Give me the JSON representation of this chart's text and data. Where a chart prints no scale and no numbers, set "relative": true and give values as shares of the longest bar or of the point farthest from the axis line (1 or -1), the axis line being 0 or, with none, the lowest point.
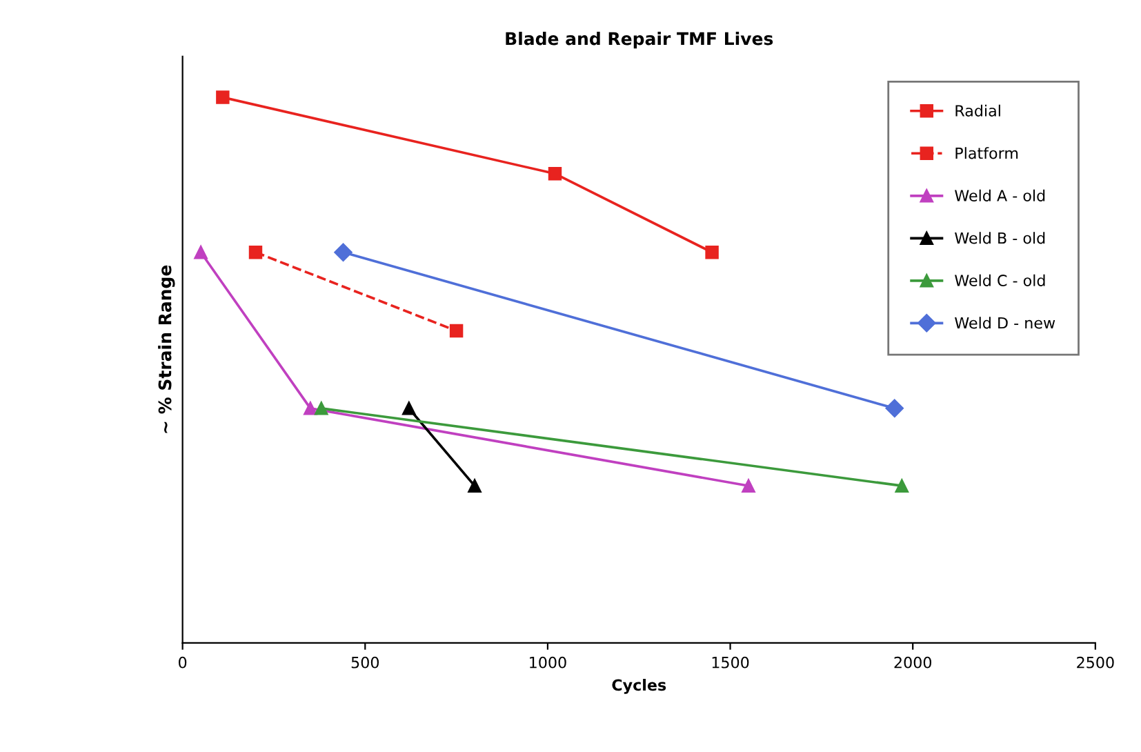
{
  "chart_data": {
    "type": "line",
    "title": "Blade and Repair TMF Lives",
    "xlabel": "Cycles",
    "ylabel": "~ % Strain Range",
    "relative": true,
    "xlim": [
      0,
      2500
    ],
    "xticks": [
      0,
      500,
      1000,
      1500,
      2000,
      2500
    ],
    "legend": "top right",
    "series": [
      {
        "name": "Radial",
        "color": "#e8231f",
        "x": [
          110,
          1020,
          1450
        ],
        "values": [
          1,
          0.86,
          0.716
        ],
        "marker": "square",
        "line_style": "solid"
      },
      {
        "name": "Platform",
        "color": "#e8231f",
        "x": [
          200,
          750
        ],
        "values": [
          0.716,
          0.572
        ],
        "marker": "square",
        "line_style": "dashed"
      },
      {
        "name": "Weld A - old",
        "color": "#c040c0",
        "x": [
          50,
          350,
          1550
        ],
        "values": [
          0.716,
          0.43,
          0.288
        ],
        "marker": "triangle",
        "line_style": "solid"
      },
      {
        "name": "Weld B - old",
        "color": "#000000",
        "x": [
          620,
          800
        ],
        "values": [
          0.43,
          0.288
        ],
        "marker": "triangle",
        "line_style": "solid"
      },
      {
        "name": "Weld C - old",
        "color": "#3c9a3c",
        "x": [
          380,
          1970
        ],
        "values": [
          0.43,
          0.288
        ],
        "marker": "triangle",
        "line_style": "solid"
      },
      {
        "name": "Weld D - new",
        "color": "#4f6fd8",
        "x": [
          440,
          1950
        ],
        "values": [
          0.716,
          0.43
        ],
        "marker": "diamond",
        "line_style": "solid"
      }
    ]
  }
}
